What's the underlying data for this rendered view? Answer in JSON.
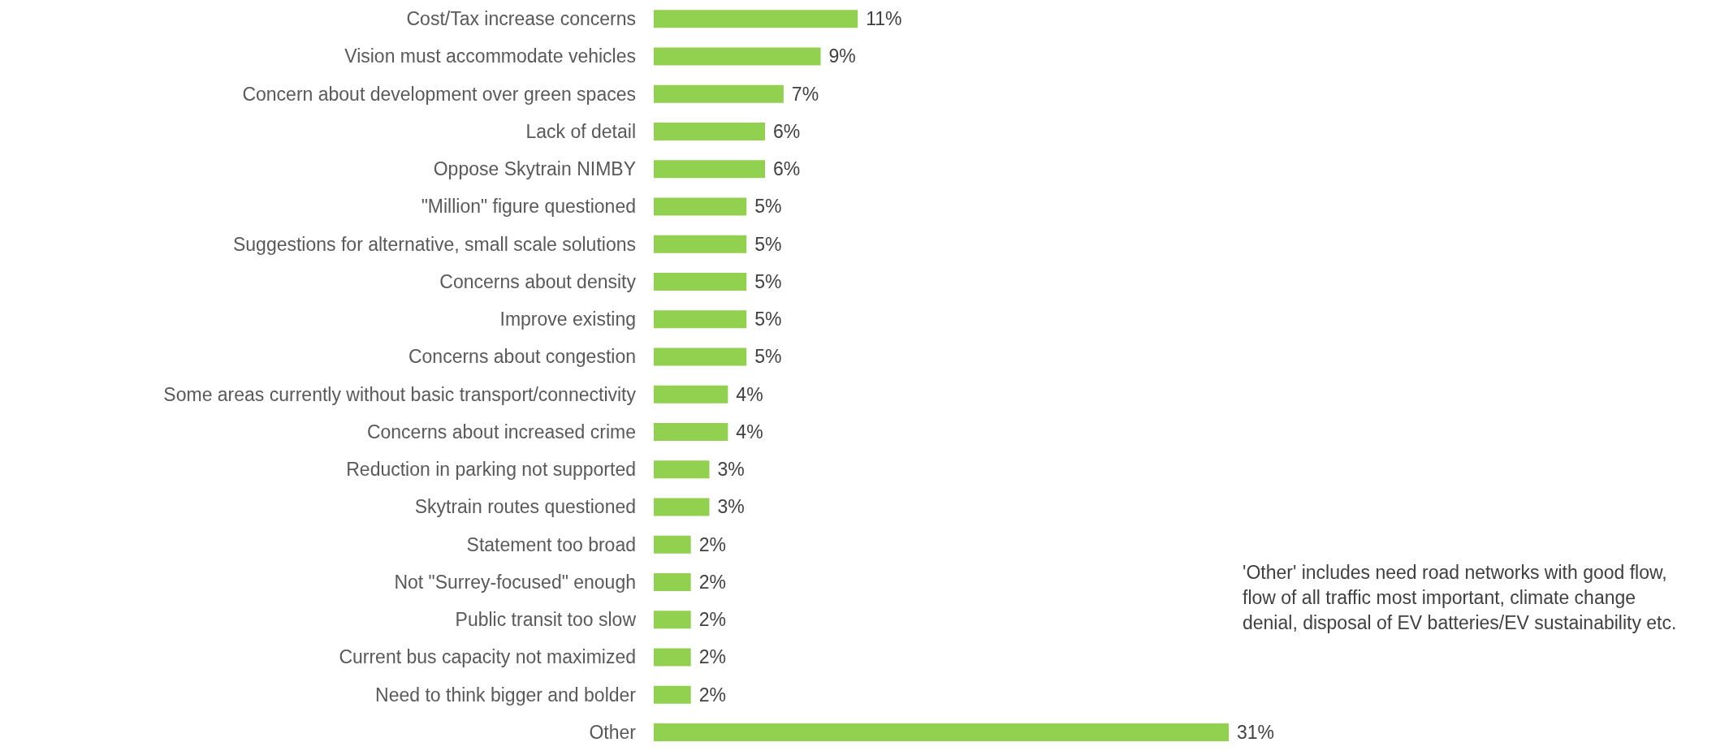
{
  "chart_data": {
    "type": "bar",
    "orientation": "horizontal",
    "categories": [
      "Cost/Tax increase concerns",
      "Vision must accommodate vehicles",
      "Concern about development over green spaces",
      "Lack of detail",
      "Oppose Skytrain NIMBY",
      "\"Million\" figure questioned",
      "Suggestions for alternative, small scale solutions",
      "Concerns about density",
      "Improve existing",
      "Concerns about congestion",
      "Some areas currently without basic transport/connectivity",
      "Concerns about increased crime",
      "Reduction in parking not supported",
      "Skytrain routes questioned",
      "Statement too broad",
      "Not \"Surrey-focused\" enough",
      "Public transit too slow",
      "Current bus capacity not maximized",
      "Need to think bigger and bolder",
      "Other"
    ],
    "values": [
      11,
      9,
      7,
      6,
      6,
      5,
      5,
      5,
      5,
      5,
      4,
      4,
      3,
      3,
      2,
      2,
      2,
      2,
      2,
      31
    ],
    "value_labels": [
      "11%",
      "9%",
      "7%",
      "6%",
      "6%",
      "5%",
      "5%",
      "5%",
      "5%",
      "5%",
      "4%",
      "4%",
      "3%",
      "3%",
      "2%",
      "2%",
      "2%",
      "2%",
      "2%",
      "31%"
    ],
    "color": "#92d050",
    "annotations": [
      "'Other' includes need road networks with good flow, flow of all traffic most important, climate change denial, disposal of EV batteries/EV sustainability etc."
    ]
  }
}
